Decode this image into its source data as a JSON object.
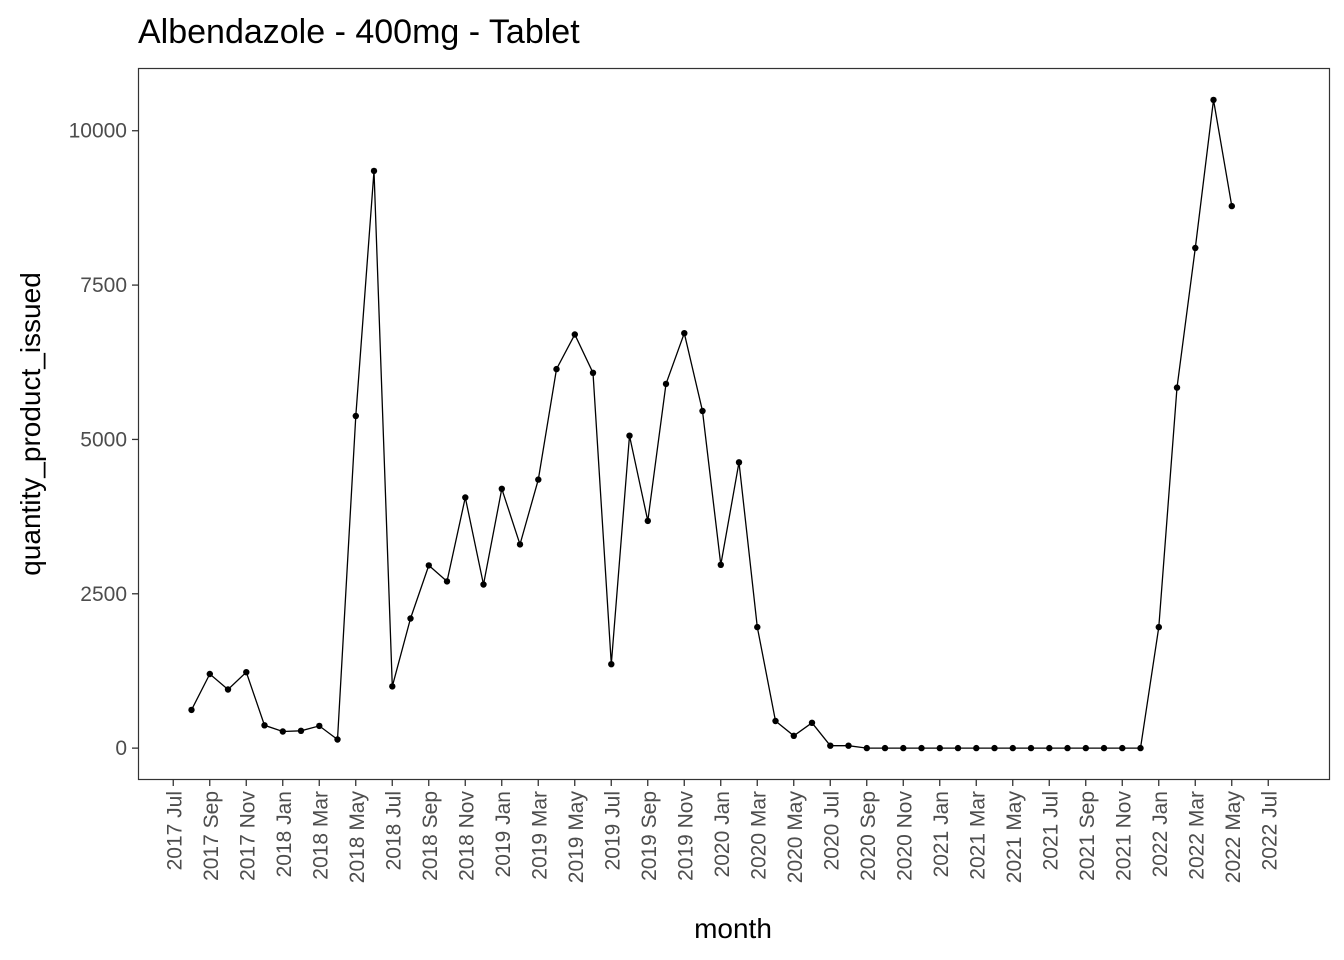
{
  "chart_data": {
    "type": "line",
    "title": "Albendazole - 400mg - Tablet",
    "xlabel": "month",
    "ylabel": "quantity_product_issued",
    "x_ticks": [
      "2017 Jul",
      "2017 Sep",
      "2017 Nov",
      "2018 Jan",
      "2018 Mar",
      "2018 May",
      "2018 Jul",
      "2018 Sep",
      "2018 Nov",
      "2019 Jan",
      "2019 Mar",
      "2019 May",
      "2019 Jul",
      "2019 Sep",
      "2019 Nov",
      "2020 Jan",
      "2020 Mar",
      "2020 May",
      "2020 Jul",
      "2020 Sep",
      "2020 Nov",
      "2021 Jan",
      "2021 Mar",
      "2021 May",
      "2021 Jul",
      "2021 Sep",
      "2021 Nov",
      "2022 Jan",
      "2022 Mar",
      "2022 May",
      "2022 Jul"
    ],
    "y_ticks": [
      0,
      2500,
      5000,
      7500,
      10000
    ],
    "ylim": [
      -500,
      11000
    ],
    "xlim": [
      "2017 Jun",
      "2022 Jul"
    ],
    "grid": false,
    "x": [
      "2017 Aug",
      "2017 Sep",
      "2017 Oct",
      "2017 Nov",
      "2017 Dec",
      "2018 Jan",
      "2018 Feb",
      "2018 Mar",
      "2018 Apr",
      "2018 May",
      "2018 Jun",
      "2018 Jul",
      "2018 Aug",
      "2018 Sep",
      "2018 Oct",
      "2018 Nov",
      "2018 Dec",
      "2019 Jan",
      "2019 Feb",
      "2019 Mar",
      "2019 Apr",
      "2019 May",
      "2019 Jun",
      "2019 Jul",
      "2019 Aug",
      "2019 Sep",
      "2019 Oct",
      "2019 Nov",
      "2019 Dec",
      "2020 Jan",
      "2020 Feb",
      "2020 Mar",
      "2020 Apr",
      "2020 May",
      "2020 Jun",
      "2020 Jul",
      "2020 Aug",
      "2020 Sep",
      "2020 Oct",
      "2020 Nov",
      "2020 Dec",
      "2021 Jan",
      "2021 Feb",
      "2021 Mar",
      "2021 Apr",
      "2021 May",
      "2021 Jun",
      "2021 Jul",
      "2021 Aug",
      "2021 Sep",
      "2021 Oct",
      "2021 Nov",
      "2021 Dec",
      "2022 Jan",
      "2022 Feb",
      "2022 Mar",
      "2022 Apr",
      "2022 May"
    ],
    "series": [
      {
        "values": [
          620,
          1200,
          950,
          1230,
          370,
          270,
          280,
          360,
          140,
          5380,
          9350,
          1000,
          2100,
          2960,
          2700,
          4060,
          2650,
          4200,
          3300,
          4350,
          6140,
          6700,
          6080,
          1360,
          5060,
          3680,
          5900,
          6720,
          5460,
          2970,
          4630,
          1960,
          440,
          200,
          410,
          40,
          40,
          0,
          0,
          0,
          0,
          0,
          0,
          0,
          0,
          0,
          0,
          0,
          0,
          0,
          0,
          0,
          0,
          1960,
          5840,
          8100,
          10500,
          8780
        ]
      }
    ],
    "colors": {
      "line": "#000000",
      "point": "#000000",
      "panel_border": "#333333",
      "tick": "#333333",
      "tick_label": "#4d4d4d"
    }
  }
}
